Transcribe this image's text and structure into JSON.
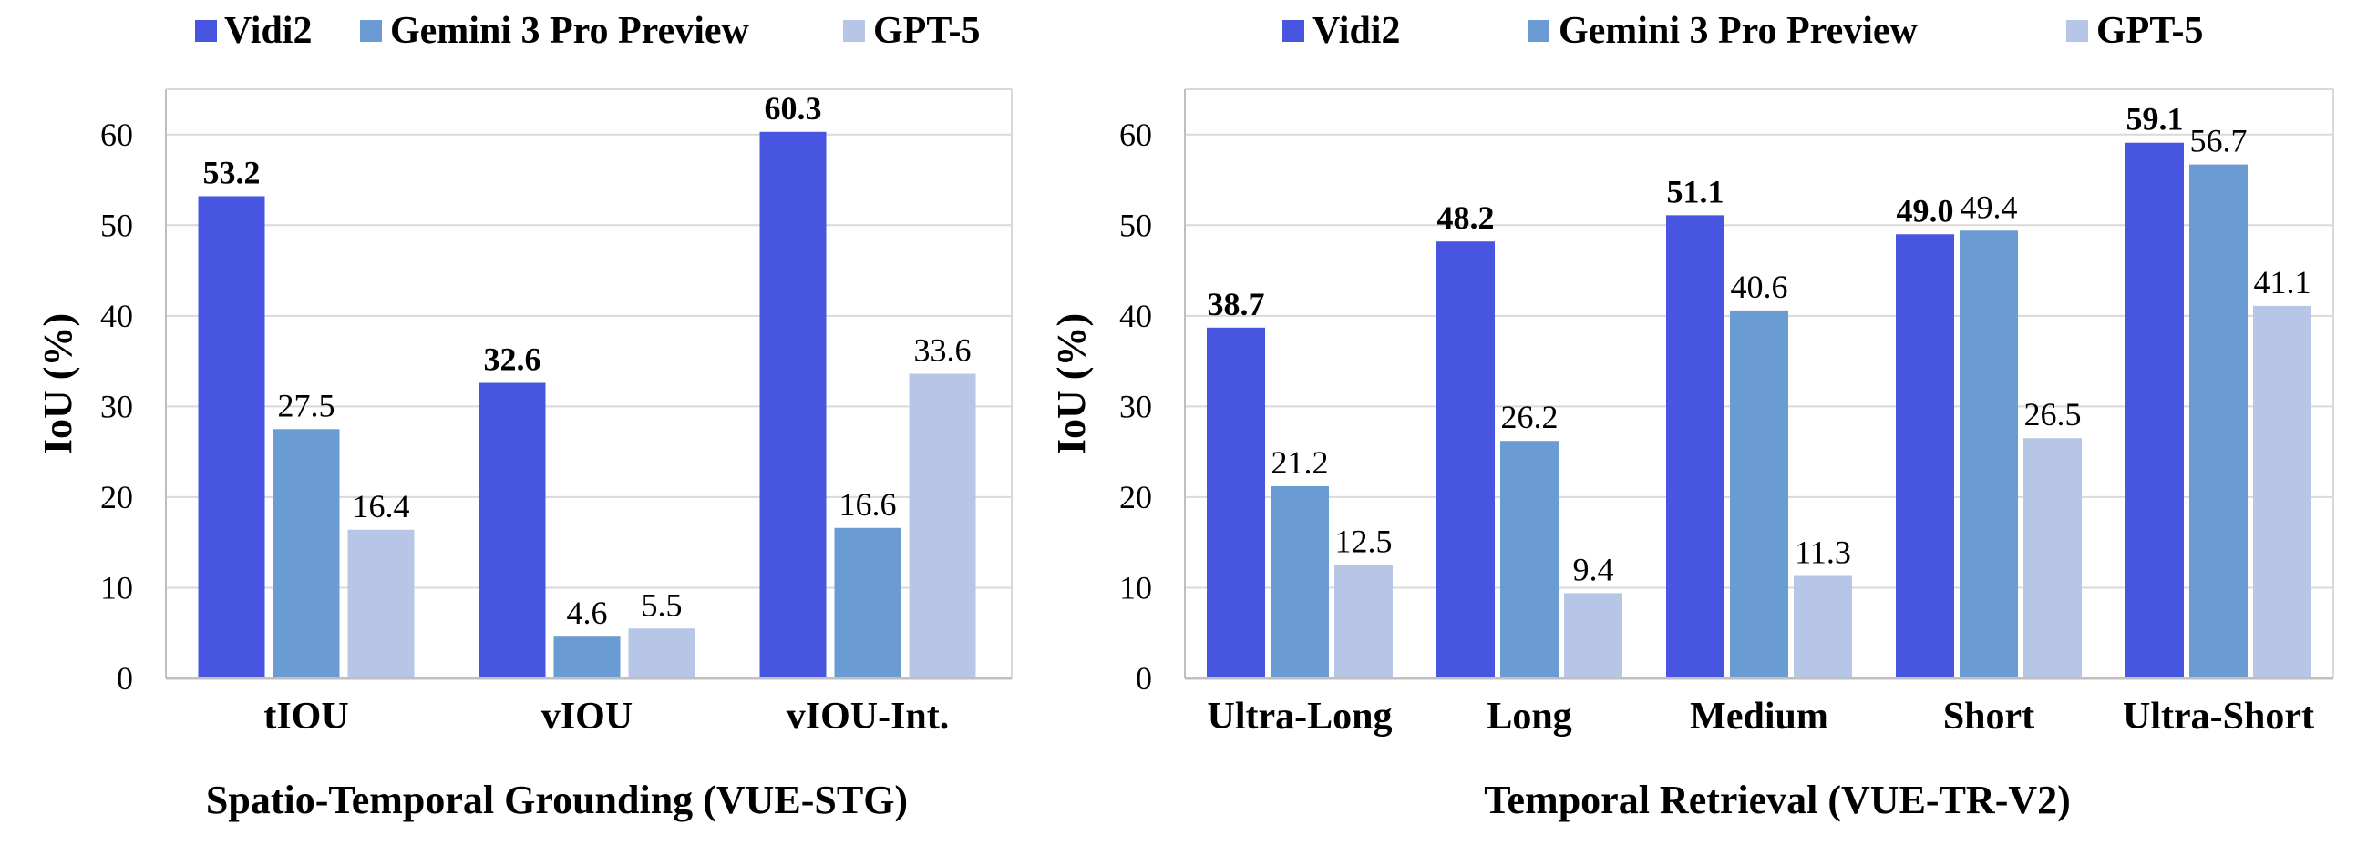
{
  "colors": {
    "vidi2": "#4755E0",
    "gemini": "#6A9BD3",
    "gpt5": "#B7C5E6",
    "grid": "#D9D9D9",
    "axis": "#BFBFBF",
    "text": "#000000"
  },
  "chart_data": [
    {
      "type": "bar",
      "title": "Spatio-Temporal Grounding (VUE-STG)",
      "ylabel": "IoU (%)",
      "xlabel": "",
      "ylim": [
        0,
        65
      ],
      "yticks": [
        0,
        10,
        20,
        30,
        40,
        50,
        60
      ],
      "grid": true,
      "legend": "top",
      "categories": [
        "tIOU",
        "vIOU",
        "vIOU-Int."
      ],
      "series": [
        {
          "name": "Vidi2",
          "color_key": "vidi2",
          "values": [
            53.2,
            32.6,
            60.3
          ],
          "labels": [
            "53.2",
            "32.6",
            "60.3"
          ],
          "bold": true
        },
        {
          "name": "Gemini 3 Pro Preview",
          "color_key": "gemini",
          "values": [
            27.5,
            4.6,
            16.6
          ],
          "labels": [
            "27.5",
            "4.6",
            "16.6"
          ],
          "bold": false
        },
        {
          "name": "GPT-5",
          "color_key": "gpt5",
          "values": [
            16.4,
            5.5,
            33.6
          ],
          "labels": [
            "16.4",
            "5.5",
            "33.6"
          ],
          "bold": false
        }
      ]
    },
    {
      "type": "bar",
      "title": "Temporal Retrieval (VUE-TR-V2)",
      "ylabel": "IoU (%)",
      "xlabel": "",
      "ylim": [
        0,
        65
      ],
      "yticks": [
        0,
        10,
        20,
        30,
        40,
        50,
        60
      ],
      "grid": true,
      "legend": "top",
      "categories": [
        "Ultra-Long",
        "Long",
        "Medium",
        "Short",
        "Ultra-Short"
      ],
      "series": [
        {
          "name": "Vidi2",
          "color_key": "vidi2",
          "values": [
            38.7,
            48.2,
            51.1,
            49.0,
            59.1
          ],
          "labels": [
            "38.7",
            "48.2",
            "51.1",
            "49.0",
            "59.1"
          ],
          "bold": true
        },
        {
          "name": "Gemini 3 Pro Preview",
          "color_key": "gemini",
          "values": [
            21.2,
            26.2,
            40.6,
            49.4,
            56.7
          ],
          "labels": [
            "21.2",
            "26.2",
            "40.6",
            "49.4",
            "56.7"
          ],
          "bold": false
        },
        {
          "name": "GPT-5",
          "color_key": "gpt5",
          "values": [
            12.5,
            9.4,
            11.3,
            26.5,
            41.1
          ],
          "labels": [
            "12.5",
            "9.4",
            "11.3",
            "26.5",
            "41.1"
          ],
          "bold": false
        }
      ]
    }
  ]
}
